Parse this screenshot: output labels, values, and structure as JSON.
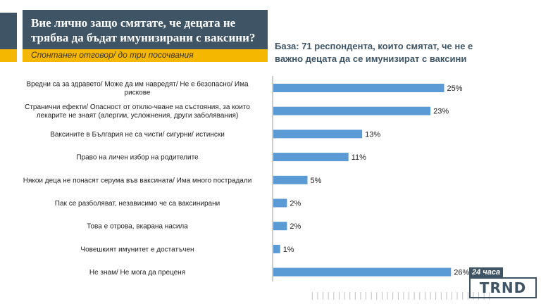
{
  "header": {
    "title_line1": "Вие лично защо смятате, че децата не",
    "title_line2": "трябва да бъдат имунизирани с ваксини?",
    "subtitle": "Спонтанен отговор/ до три посочвания"
  },
  "base_note": {
    "line1": "База: 71 респондента, които смятат, че не е",
    "line2": "важно децата да се имунизират с ваксини"
  },
  "logo": {
    "top": "24 часа",
    "main": "TRND"
  },
  "colors": {
    "bar": "#5b9bd5",
    "header_bg": "#3f5566",
    "accent": "#f5b700"
  },
  "chart_data": {
    "type": "bar",
    "orientation": "horizontal",
    "categories": [
      [
        "Вредни са за здравето/ Може да им навредят/ Не е безопасно/ Има",
        "рискове"
      ],
      [
        "Странични ефекти/ Опасност от отклю-чване на състояния, за които",
        "лекарите не знаят (алергии, усложнения, други заболявания)"
      ],
      [
        "Ваксините в България не са чисти/ сигурни/ истински"
      ],
      [
        "Право на личен избор на родителите"
      ],
      [
        "Някои деца не понасят серума във ваксината/ Има много пострадали"
      ],
      [
        "Пак се разболяват, независимо че са ваксинирани"
      ],
      [
        "Това е отрова, вкарана насила"
      ],
      [
        "Човешкият имунитет е достатъчен"
      ],
      [
        "Не знам/ Не мога да преценя"
      ]
    ],
    "values": [
      25,
      23,
      13,
      11,
      5,
      2,
      2,
      1,
      26
    ],
    "value_labels": [
      "25%",
      "23%",
      "13%",
      "11%",
      "5%",
      "2%",
      "2%",
      "1%",
      "26%"
    ],
    "xlim": [
      0,
      30
    ],
    "grid": false,
    "legend": "none"
  }
}
